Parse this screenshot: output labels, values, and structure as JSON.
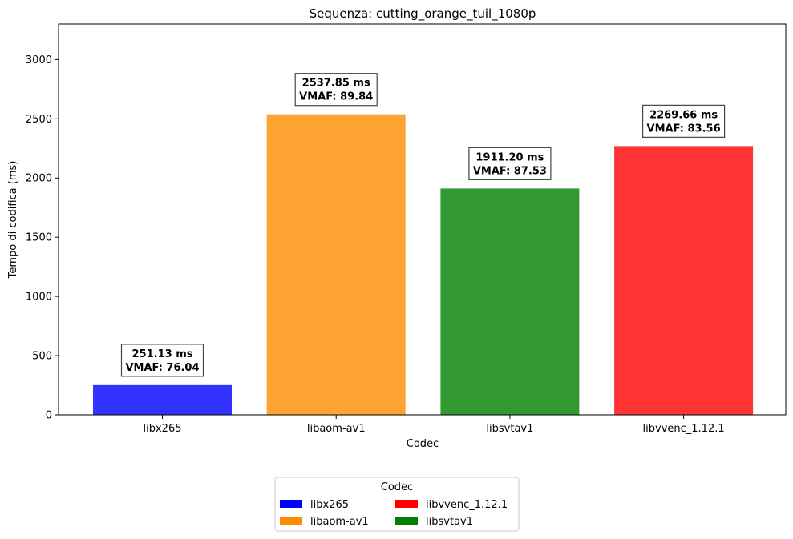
{
  "chart_data": {
    "type": "bar",
    "title": "Sequenza: cutting_orange_tuil_1080p",
    "xlabel": "Codec",
    "ylabel": "Tempo di codifica (ms)",
    "ylim": [
      0,
      3300
    ],
    "yticks": [
      0,
      500,
      1000,
      1500,
      2000,
      2500,
      3000
    ],
    "ytick_labels": [
      "0",
      "500",
      "1000",
      "1500",
      "2000",
      "2500",
      "3000"
    ],
    "categories": [
      "libx265",
      "libaom-av1",
      "libsvtav1",
      "libvvenc_1.12.1"
    ],
    "values": [
      251.13,
      2537.85,
      1911.2,
      2269.66
    ],
    "vmaf": [
      76.04,
      89.84,
      87.53,
      83.56
    ],
    "bar_labels": [
      {
        "line1": "251.13 ms",
        "line2": "VMAF: 76.04"
      },
      {
        "line1": "2537.85 ms",
        "line2": "VMAF: 89.84"
      },
      {
        "line1": "1911.20 ms",
        "line2": "VMAF: 87.53"
      },
      {
        "line1": "2269.66 ms",
        "line2": "VMAF: 83.56"
      }
    ],
    "bar_colors": [
      "#3333ff",
      "#ffa333",
      "#339933",
      "#ff3333"
    ],
    "grid": false,
    "legend": {
      "title": "Codec",
      "placement": "bottom-center",
      "entries": [
        {
          "label": "libx265",
          "color": "#0000ff"
        },
        {
          "label": "libaom-av1",
          "color": "#ff8c00"
        },
        {
          "label": "libvvenc_1.12.1",
          "color": "#ff0000"
        },
        {
          "label": "libsvtav1",
          "color": "#008000"
        }
      ]
    }
  }
}
